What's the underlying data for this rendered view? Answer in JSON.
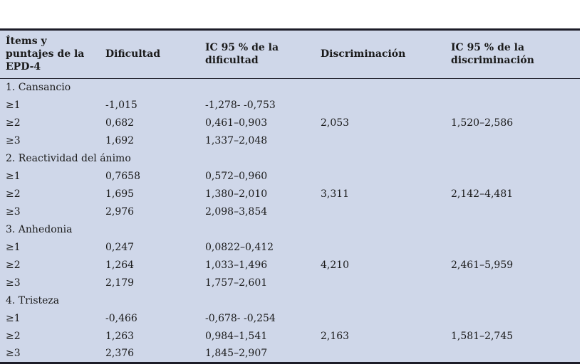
{
  "colors": {
    "table_bg": "#cfd7e9",
    "border": "#1c1c28",
    "text": "#1a1a1a"
  },
  "table": {
    "headers": [
      "Ítems y puntajes de la EPD-4",
      "Dificultad",
      "IC 95 % de la dificultad",
      "Discriminación",
      "IC 95 % de la discriminación"
    ],
    "column_keys": [
      "item",
      "dificultad",
      "ic_dificultad",
      "discriminacion",
      "ic_discriminacion"
    ],
    "sections": [
      {
        "label": "1. Cansancio",
        "rows": [
          {
            "item": "≥1",
            "dificultad": "-1,015",
            "ic_dificultad": "-1,278- -0,753",
            "discriminacion": "",
            "ic_discriminacion": ""
          },
          {
            "item": "≥2",
            "dificultad": "0,682",
            "ic_dificultad": "0,461–0,903",
            "discriminacion": "2,053",
            "ic_discriminacion": "1,520–2,586"
          },
          {
            "item": "≥3",
            "dificultad": "1,692",
            "ic_dificultad": "1,337–2,048",
            "discriminacion": "",
            "ic_discriminacion": ""
          }
        ]
      },
      {
        "label": "2. Reactividad del ánimo",
        "rows": [
          {
            "item": "≥1",
            "dificultad": "0,7658",
            "ic_dificultad": "0,572–0,960",
            "discriminacion": "",
            "ic_discriminacion": ""
          },
          {
            "item": "≥2",
            "dificultad": "1,695",
            "ic_dificultad": "1,380–2,010",
            "discriminacion": "3,311",
            "ic_discriminacion": "2,142–4,481"
          },
          {
            "item": "≥3",
            "dificultad": "2,976",
            "ic_dificultad": "2,098–3,854",
            "discriminacion": "",
            "ic_discriminacion": ""
          }
        ]
      },
      {
        "label": "3. Anhedonia",
        "rows": [
          {
            "item": "≥1",
            "dificultad": "0,247",
            "ic_dificultad": "0,0822–0,412",
            "discriminacion": "",
            "ic_discriminacion": ""
          },
          {
            "item": "≥2",
            "dificultad": "1,264",
            "ic_dificultad": "1,033–1,496",
            "discriminacion": "4,210",
            "ic_discriminacion": "2,461–5,959"
          },
          {
            "item": "≥3",
            "dificultad": "2,179",
            "ic_dificultad": "1,757–2,601",
            "discriminacion": "",
            "ic_discriminacion": ""
          }
        ]
      },
      {
        "label": "4. Tristeza",
        "rows": [
          {
            "item": "≥1",
            "dificultad": "-0,466",
            "ic_dificultad": "-0,678- -0,254",
            "discriminacion": "",
            "ic_discriminacion": ""
          },
          {
            "item": "≥2",
            "dificultad": "1,263",
            "ic_dificultad": "0,984–1,541",
            "discriminacion": "2,163",
            "ic_discriminacion": "1,581–2,745"
          },
          {
            "item": "≥3",
            "dificultad": "2,376",
            "ic_dificultad": "1,845–2,907",
            "discriminacion": "",
            "ic_discriminacion": ""
          }
        ]
      }
    ]
  }
}
